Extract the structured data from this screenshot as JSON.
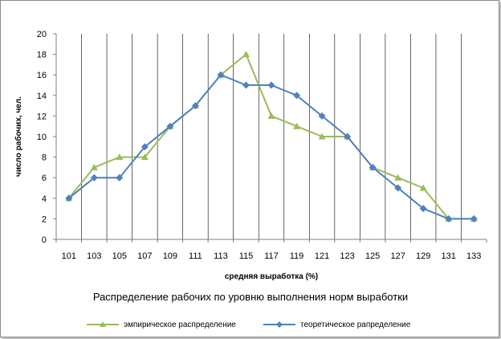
{
  "chart_data": {
    "type": "line",
    "x": [
      101,
      103,
      105,
      107,
      109,
      111,
      113,
      115,
      117,
      119,
      121,
      123,
      125,
      127,
      129,
      131,
      133
    ],
    "series": [
      {
        "name": "эмпирическое распределение",
        "color": "#9bbb59",
        "marker": "triangle",
        "values": [
          4,
          7,
          8,
          8,
          11,
          13,
          16,
          18,
          12,
          11,
          10,
          10,
          7,
          6,
          5,
          2,
          2
        ]
      },
      {
        "name": "теоретическое рапределение",
        "color": "#4f81bd",
        "marker": "diamond",
        "values": [
          4,
          6,
          6,
          9,
          11,
          13,
          16,
          15,
          15,
          14,
          12,
          10,
          7,
          5,
          3,
          2,
          2
        ]
      }
    ],
    "title": "Распределение рабочих по уровню выполнения норм выработки",
    "xlabel": "средняя выработка  (%)",
    "ylabel": "число рабочих, чел.",
    "ylim": [
      0,
      20
    ],
    "ytick_step": 2,
    "grid": "vertical",
    "legend": "bottom"
  }
}
